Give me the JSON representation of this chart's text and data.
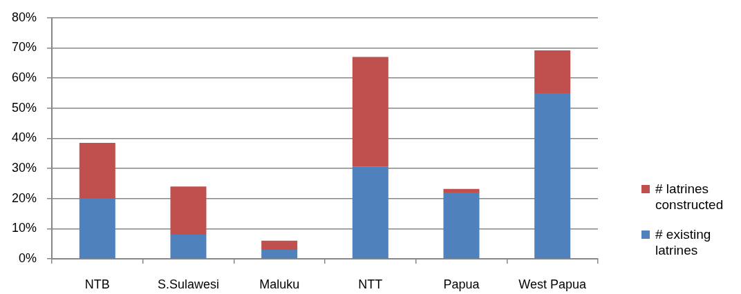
{
  "chart_data": {
    "type": "bar",
    "stacked": true,
    "categories": [
      "NTB",
      "S.Sulawesi",
      "Maluku",
      "NTT",
      "Papua",
      "West Papua"
    ],
    "series": [
      {
        "name": "# existing latrines",
        "color": "#4f81bd",
        "values": [
          20,
          8,
          3,
          30.5,
          22,
          55
        ]
      },
      {
        "name": "# latrines constructed",
        "color": "#c0504d",
        "values": [
          18.5,
          16,
          3,
          36.5,
          1.2,
          14.2
        ]
      }
    ],
    "ylim": [
      0,
      80
    ],
    "yticks": [
      {
        "value": 0,
        "label": "0%"
      },
      {
        "value": 10,
        "label": "10%"
      },
      {
        "value": 20,
        "label": "20%"
      },
      {
        "value": 30,
        "label": "30%"
      },
      {
        "value": 40,
        "label": "40%"
      },
      {
        "value": 50,
        "label": "50%"
      },
      {
        "value": 60,
        "label": "60%"
      },
      {
        "value": 70,
        "label": "70%"
      },
      {
        "value": 80,
        "label": "80%"
      }
    ],
    "grid": "y",
    "legend": "right"
  }
}
